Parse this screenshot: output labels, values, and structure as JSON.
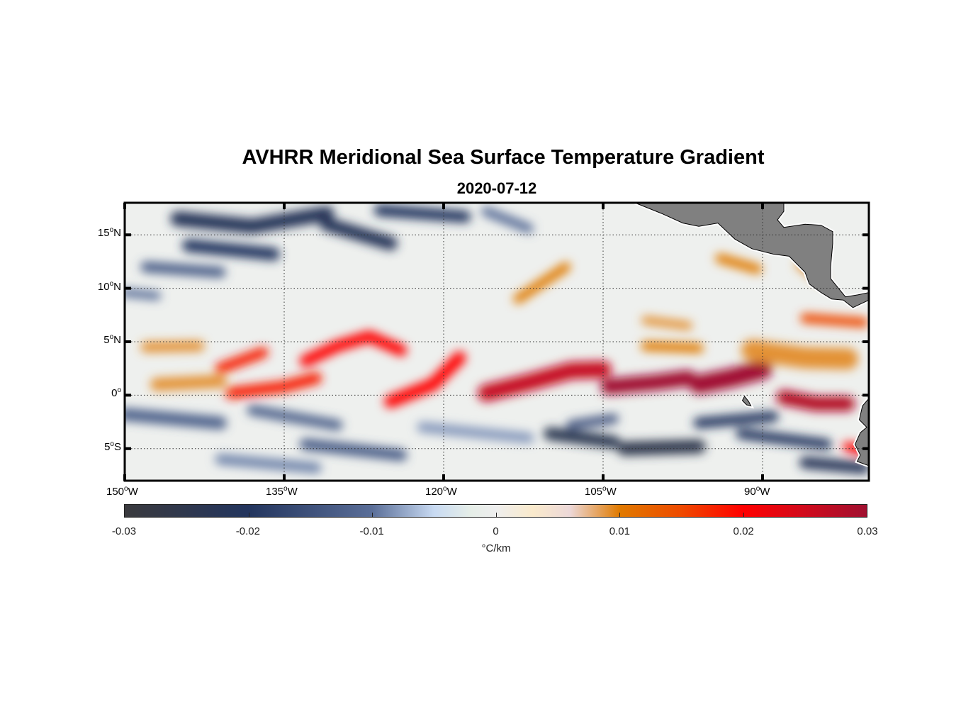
{
  "title": "AVHRR Meridional Sea Surface Temperature Gradient",
  "subtitle": "2020-07-12",
  "chart_data": {
    "type": "heatmap",
    "title": "AVHRR Meridional Sea Surface Temperature Gradient",
    "subtitle": "2020-07-12",
    "lon_range": [
      -150,
      -80
    ],
    "lat_range": [
      -8,
      18
    ],
    "grid": true,
    "x_ticks": [
      {
        "value": -150,
        "label": "150",
        "suffix": "W"
      },
      {
        "value": -135,
        "label": "135",
        "suffix": "W"
      },
      {
        "value": -120,
        "label": "120",
        "suffix": "W"
      },
      {
        "value": -105,
        "label": "105",
        "suffix": "W"
      },
      {
        "value": -90,
        "label": "90",
        "suffix": "W"
      }
    ],
    "y_ticks": [
      {
        "value": 15,
        "label": "15",
        "suffix": "N"
      },
      {
        "value": 10,
        "label": "10",
        "suffix": "N"
      },
      {
        "value": 5,
        "label": "5",
        "suffix": "N"
      },
      {
        "value": 0,
        "label": "0",
        "suffix": ""
      },
      {
        "value": -5,
        "label": "5",
        "suffix": "S"
      }
    ],
    "colorbar": {
      "range": [
        -0.03,
        0.03
      ],
      "ticks": [
        -0.03,
        -0.02,
        -0.01,
        0,
        0.01,
        0.02,
        0.03
      ],
      "tick_labels": [
        "-0.03",
        "-0.02",
        "-0.01",
        "0",
        "0.01",
        "0.02",
        "0.03"
      ],
      "label": "°C/km",
      "colormap": [
        [
          -0.03,
          "#3a3a3e"
        ],
        [
          -0.02,
          "#23355e"
        ],
        [
          -0.01,
          "#5a6e98"
        ],
        [
          -0.005,
          "#c8daf2"
        ],
        [
          -0.002,
          "#e6eee8"
        ],
        [
          0,
          "#eeeeee"
        ],
        [
          0.003,
          "#faeacc"
        ],
        [
          0.006,
          "#ecd8d8"
        ],
        [
          0.01,
          "#e07a00"
        ],
        [
          0.015,
          "#ee4a00"
        ],
        [
          0.02,
          "#ff0000"
        ],
        [
          0.025,
          "#d00a1c"
        ],
        [
          0.03,
          "#a01030"
        ]
      ]
    },
    "land_color": "#808080",
    "ocean_background": "#eef0ee",
    "features": [
      {
        "path": [
          [
            -148,
            4.5
          ],
          [
            -143,
            4.6
          ]
        ],
        "value": 0.009,
        "width": 1.0
      },
      {
        "path": [
          [
            -147,
            1
          ],
          [
            -141,
            1.3
          ]
        ],
        "value": 0.009,
        "width": 1.2
      },
      {
        "path": [
          [
            -141,
            2.5
          ],
          [
            -137,
            4
          ]
        ],
        "value": 0.018,
        "width": 1.0
      },
      {
        "path": [
          [
            -140,
            0.2
          ],
          [
            -135,
            0.8
          ],
          [
            -132,
            1.6
          ]
        ],
        "value": 0.018,
        "width": 1.1
      },
      {
        "path": [
          [
            -133,
            3.2
          ],
          [
            -130,
            4.6
          ],
          [
            -127,
            5.5
          ],
          [
            -124,
            4.2
          ]
        ],
        "value": 0.02,
        "width": 1.1
      },
      {
        "path": [
          [
            -125,
            -0.6
          ],
          [
            -121,
            1
          ],
          [
            -118.5,
            3.5
          ]
        ],
        "value": 0.02,
        "width": 1.2
      },
      {
        "path": [
          [
            -116,
            0.2
          ],
          [
            -112,
            1.2
          ],
          [
            -108,
            2.3
          ],
          [
            -105,
            2.4
          ]
        ],
        "value": 0.026,
        "width": 1.6
      },
      {
        "path": [
          [
            -104.5,
            0.8
          ],
          [
            -100,
            1.2
          ],
          [
            -97,
            1.6
          ]
        ],
        "value": 0.03,
        "width": 1.5
      },
      {
        "path": [
          [
            -96,
            1
          ],
          [
            -93,
            1.6
          ],
          [
            -90,
            2.4
          ]
        ],
        "value": 0.03,
        "width": 1.8
      },
      {
        "path": [
          [
            -88,
            -0.2
          ],
          [
            -85,
            -0.8
          ],
          [
            -82,
            -0.8
          ]
        ],
        "value": 0.028,
        "width": 1.4
      },
      {
        "path": [
          [
            -91,
            4.2
          ],
          [
            -86,
            3.5
          ],
          [
            -82,
            3.4
          ]
        ],
        "value": 0.009,
        "width": 2.0
      },
      {
        "path": [
          [
            -101,
            4.6
          ],
          [
            -96,
            4.4
          ]
        ],
        "value": 0.01,
        "width": 0.9
      },
      {
        "path": [
          [
            -113,
            9
          ],
          [
            -110,
            11
          ],
          [
            -108.5,
            12
          ]
        ],
        "value": 0.01,
        "width": 0.9
      },
      {
        "path": [
          [
            -94,
            12.8
          ],
          [
            -90.5,
            11.8
          ]
        ],
        "value": 0.01,
        "width": 0.9
      },
      {
        "path": [
          [
            -86.5,
            12.2
          ],
          [
            -84.5,
            10.8
          ]
        ],
        "value": 0.009,
        "width": 0.8
      },
      {
        "path": [
          [
            -101,
            7
          ],
          [
            -97,
            6.5
          ]
        ],
        "value": 0.009,
        "width": 0.8
      },
      {
        "path": [
          [
            -86,
            7.2
          ],
          [
            -80.5,
            6.8
          ]
        ],
        "value": 0.015,
        "width": 0.9
      },
      {
        "path": [
          [
            -82,
            -4.8
          ],
          [
            -80.5,
            -5.2
          ]
        ],
        "value": 0.02,
        "width": 0.9
      },
      {
        "path": [
          [
            -145,
            16.5
          ],
          [
            -138,
            15.8
          ],
          [
            -131,
            17
          ]
        ],
        "value": -0.022,
        "width": 1.4
      },
      {
        "path": [
          [
            -144,
            14
          ],
          [
            -136,
            13.2
          ]
        ],
        "value": -0.02,
        "width": 1.2
      },
      {
        "path": [
          [
            -131,
            16
          ],
          [
            -125,
            14.2
          ]
        ],
        "value": -0.022,
        "width": 1.3
      },
      {
        "path": [
          [
            -126,
            17.3
          ],
          [
            -118,
            16.7
          ]
        ],
        "value": -0.02,
        "width": 1.1
      },
      {
        "path": [
          [
            -148,
            12
          ],
          [
            -141,
            11.5
          ]
        ],
        "value": -0.013,
        "width": 1.0
      },
      {
        "path": [
          [
            -150,
            9.6
          ],
          [
            -147,
            9.3
          ]
        ],
        "value": -0.01,
        "width": 0.8
      },
      {
        "path": [
          [
            -116,
            17.2
          ],
          [
            -112,
            15.6
          ]
        ],
        "value": -0.01,
        "width": 0.9
      },
      {
        "path": [
          [
            -150,
            -1.8
          ],
          [
            -141,
            -2.6
          ]
        ],
        "value": -0.012,
        "width": 1.2
      },
      {
        "path": [
          [
            -138,
            -1.4
          ],
          [
            -130,
            -2.8
          ]
        ],
        "value": -0.012,
        "width": 1.0
      },
      {
        "path": [
          [
            -133,
            -4.6
          ],
          [
            -124,
            -5.6
          ]
        ],
        "value": -0.013,
        "width": 1.1
      },
      {
        "path": [
          [
            -122,
            -3
          ],
          [
            -112,
            -4
          ]
        ],
        "value": -0.008,
        "width": 1.0
      },
      {
        "path": [
          [
            -108,
            -2.8
          ],
          [
            -104,
            -2.2
          ]
        ],
        "value": -0.014,
        "width": 0.9
      },
      {
        "path": [
          [
            -110,
            -3.6
          ],
          [
            -104,
            -4.4
          ]
        ],
        "value": -0.024,
        "width": 1.2
      },
      {
        "path": [
          [
            -103,
            -5
          ],
          [
            -96,
            -4.8
          ]
        ],
        "value": -0.025,
        "width": 1.3
      },
      {
        "path": [
          [
            -96,
            -2.6
          ],
          [
            -89,
            -2
          ]
        ],
        "value": -0.02,
        "width": 1.0
      },
      {
        "path": [
          [
            -92,
            -3.6
          ],
          [
            -84,
            -4.6
          ]
        ],
        "value": -0.02,
        "width": 1.0
      },
      {
        "path": [
          [
            -86,
            -6.3
          ],
          [
            -80.5,
            -6.8
          ]
        ],
        "value": -0.022,
        "width": 1.1
      },
      {
        "path": [
          [
            -141,
            -6
          ],
          [
            -132,
            -6.8
          ]
        ],
        "value": -0.009,
        "width": 1.0
      }
    ],
    "land": [
      [
        [
          -102,
          18
        ],
        [
          -99.5,
          17
        ],
        [
          -97.5,
          16.1
        ],
        [
          -96,
          15.8
        ],
        [
          -94.2,
          16.1
        ],
        [
          -92.6,
          14.6
        ],
        [
          -91,
          13.7
        ],
        [
          -89,
          13.2
        ],
        [
          -87.5,
          13
        ],
        [
          -86,
          11.5
        ],
        [
          -85.6,
          10.4
        ],
        [
          -84.5,
          9.6
        ],
        [
          -83.5,
          9
        ],
        [
          -82.4,
          8.9
        ],
        [
          -81.5,
          8.2
        ],
        [
          -80,
          8.9
        ],
        [
          -80,
          9.6
        ],
        [
          -81,
          9.4
        ],
        [
          -82.2,
          9.2
        ],
        [
          -83.6,
          10.9
        ],
        [
          -83.6,
          12
        ],
        [
          -83.4,
          14.2
        ],
        [
          -83.4,
          15.3
        ],
        [
          -84.5,
          15.9
        ],
        [
          -86,
          16
        ],
        [
          -88,
          15.7
        ],
        [
          -88.6,
          16.4
        ],
        [
          -88,
          17.2
        ],
        [
          -88,
          18
        ]
      ]
    ],
    "land_extra": [
      [
        [
          -80,
          -0.3
        ],
        [
          -80.6,
          -1
        ],
        [
          -80.9,
          -2.3
        ],
        [
          -80.2,
          -3
        ],
        [
          -80.8,
          -3.5
        ],
        [
          -81.3,
          -4.6
        ],
        [
          -80.8,
          -5.6
        ],
        [
          -81.1,
          -6.2
        ],
        [
          -80,
          -6.6
        ]
      ],
      [
        [
          -91.7,
          -0.1
        ],
        [
          -91.3,
          -0.6
        ],
        [
          -91.1,
          -1
        ],
        [
          -91.5,
          -0.9
        ],
        [
          -91.9,
          -0.5
        ]
      ]
    ]
  }
}
